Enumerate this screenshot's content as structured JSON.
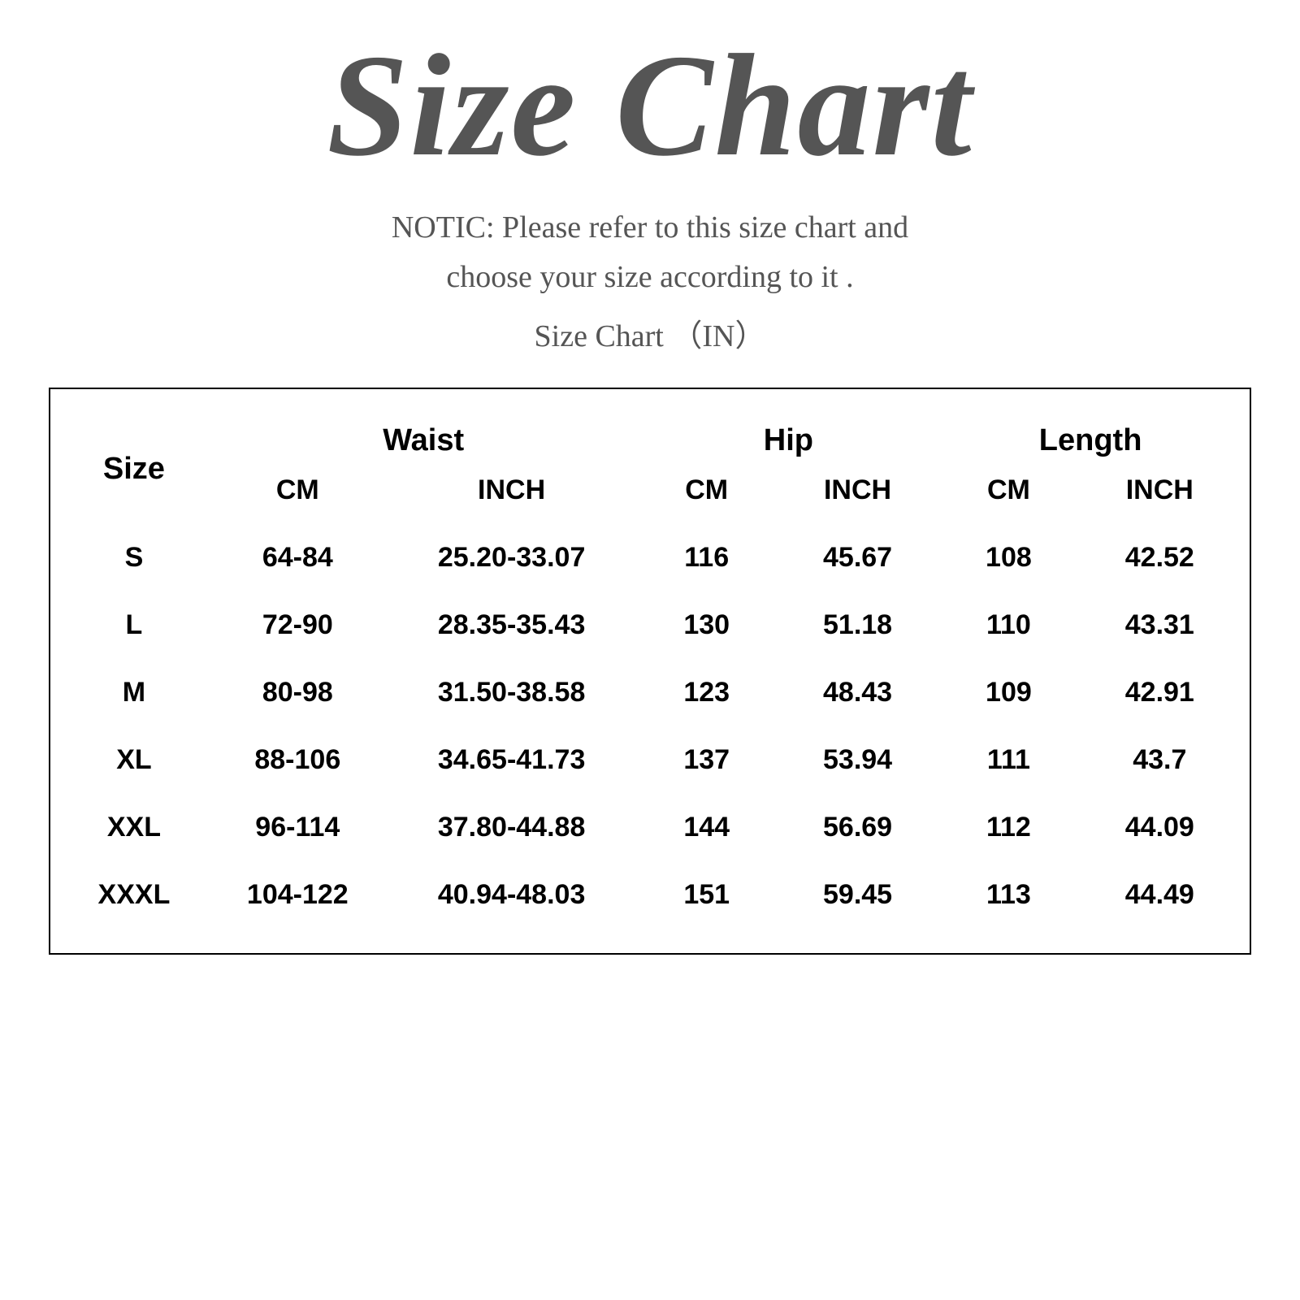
{
  "header": {
    "title": "Size Chart",
    "notice_line1": "NOTIC: Please refer to this size chart and",
    "notice_line2": "choose your size according to it .",
    "sub": "Size Chart （IN）"
  },
  "table": {
    "columns": {
      "size": "Size",
      "waist": "Waist",
      "hip": "Hip",
      "length": "Length",
      "cm": "CM",
      "inch": "INCH"
    },
    "rows": [
      {
        "size": "S",
        "waist_cm": "64-84",
        "waist_in": "25.20-33.07",
        "hip_cm": "116",
        "hip_in": "45.67",
        "len_cm": "108",
        "len_in": "42.52"
      },
      {
        "size": "L",
        "waist_cm": "72-90",
        "waist_in": "28.35-35.43",
        "hip_cm": "130",
        "hip_in": "51.18",
        "len_cm": "110",
        "len_in": "43.31"
      },
      {
        "size": "M",
        "waist_cm": "80-98",
        "waist_in": "31.50-38.58",
        "hip_cm": "123",
        "hip_in": "48.43",
        "len_cm": "109",
        "len_in": "42.91"
      },
      {
        "size": "XL",
        "waist_cm": "88-106",
        "waist_in": "34.65-41.73",
        "hip_cm": "137",
        "hip_in": "53.94",
        "len_cm": "111",
        "len_in": "43.7"
      },
      {
        "size": "XXL",
        "waist_cm": "96-114",
        "waist_in": "37.80-44.88",
        "hip_cm": "144",
        "hip_in": "56.69",
        "len_cm": "112",
        "len_in": "44.09"
      },
      {
        "size": "XXXL",
        "waist_cm": "104-122",
        "waist_in": "40.94-48.03",
        "hip_cm": "151",
        "hip_in": "59.45",
        "len_cm": "113",
        "len_in": "44.49"
      }
    ]
  },
  "style": {
    "page_bg": "#ffffff",
    "title_color": "#555555",
    "notice_color": "#555555",
    "table_border": "#000000",
    "text_color": "#000000",
    "title_fontsize": 180,
    "notice_fontsize": 38,
    "header_fontsize": 38,
    "cell_fontsize": 34
  }
}
